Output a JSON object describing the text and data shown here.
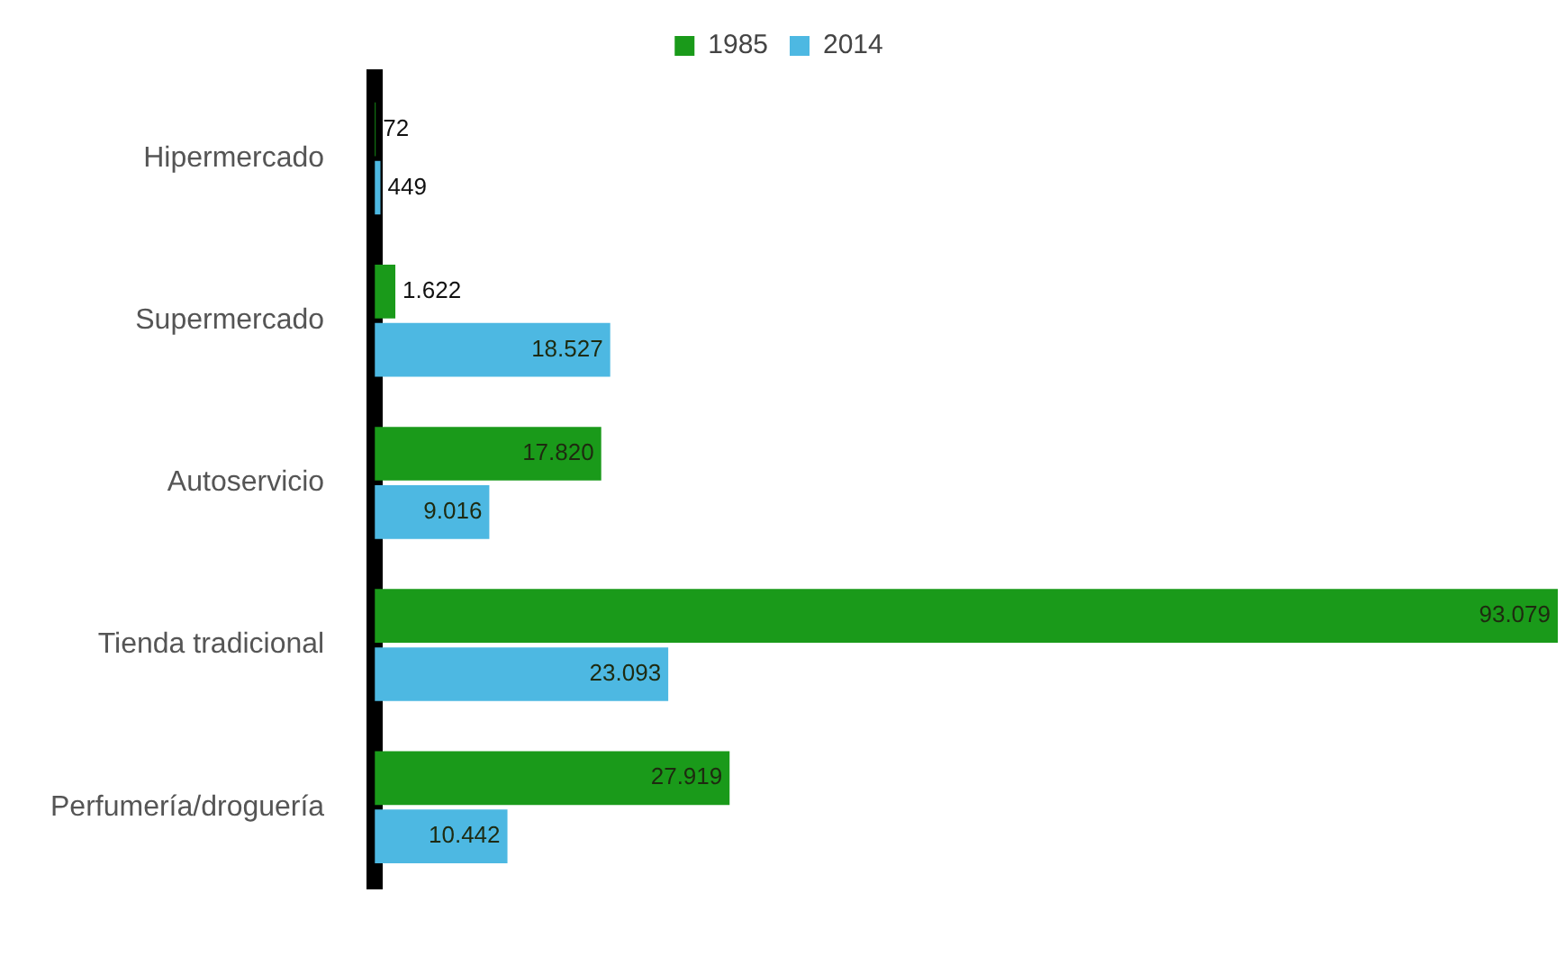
{
  "chart_data": {
    "type": "bar",
    "orientation": "horizontal",
    "categories": [
      "Hipermercado",
      "Supermercado",
      "Autoservicio",
      "Tienda tradicional",
      "Perfumería/droguería"
    ],
    "series": [
      {
        "name": "1985",
        "color": "#1a9a1a",
        "values": [
          72,
          1622,
          17820,
          93079,
          27919
        ],
        "value_labels": [
          "72",
          "1.622",
          "17.820",
          "93.079",
          "27.919"
        ]
      },
      {
        "name": "2014",
        "color": "#4db8e2",
        "values": [
          449,
          18527,
          9016,
          23093,
          10442
        ],
        "value_labels": [
          "449",
          "18.527",
          "9.016",
          "23.093",
          "10.442"
        ]
      }
    ],
    "legend": "top",
    "grid": false
  }
}
